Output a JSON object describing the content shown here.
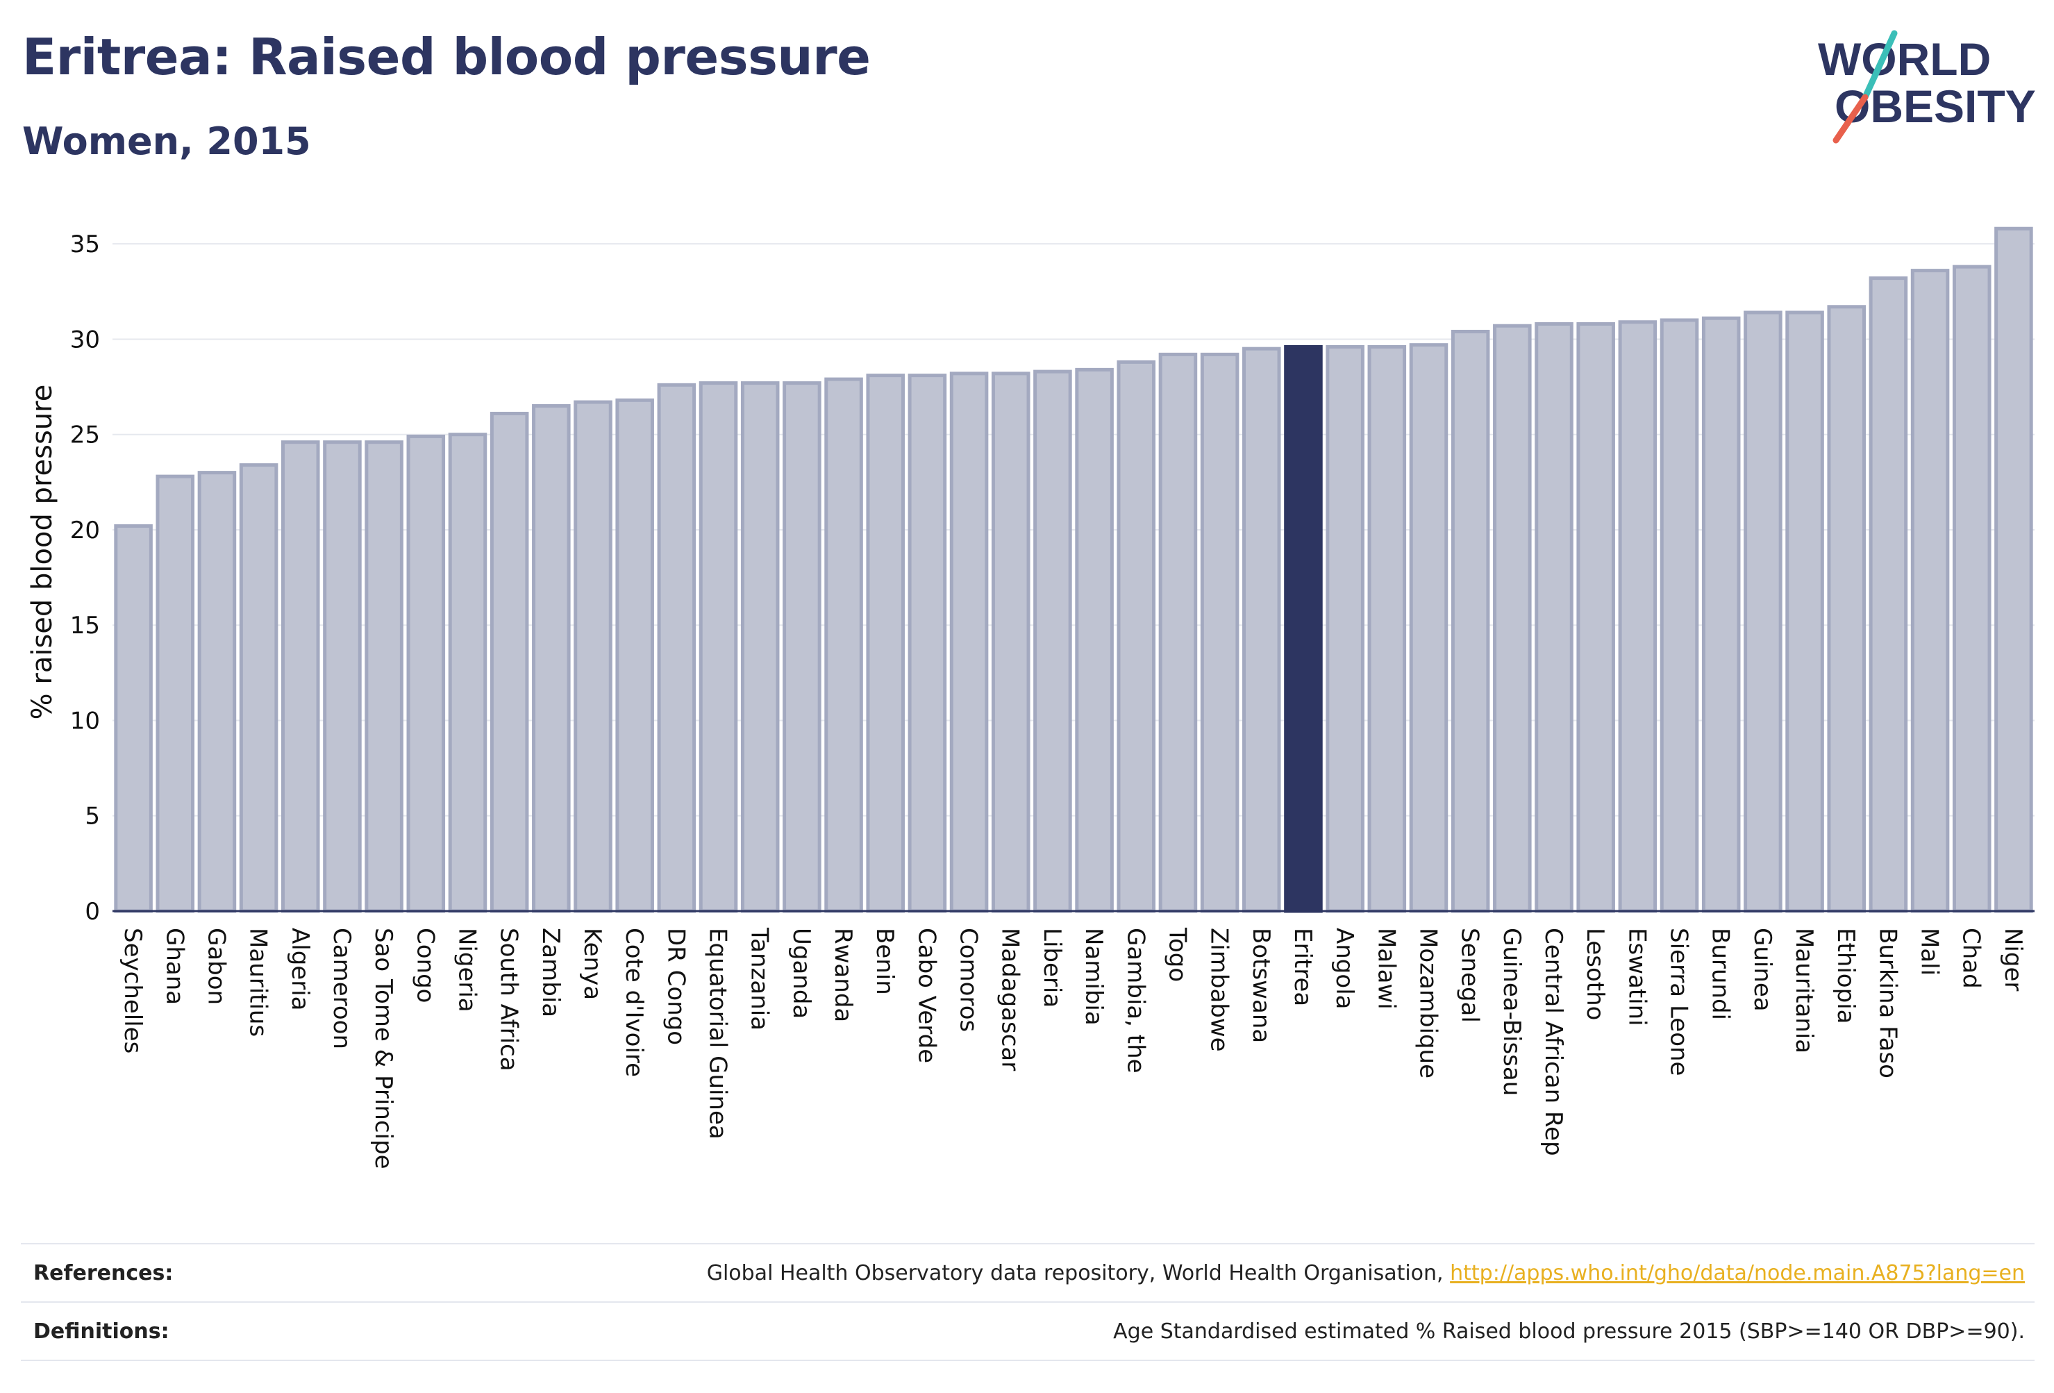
{
  "header": {
    "title": "Eritrea: Raised blood pressure",
    "subtitle": "Women, 2015"
  },
  "logo": {
    "line1": "WORLD",
    "line2": "OBESITY",
    "colors": {
      "text": "#2d3561",
      "slash_teal": "#3bbfb8",
      "slash_red": "#e8604c"
    }
  },
  "colors": {
    "bar_default": "#bfc3d2",
    "bar_border": "#a3a9c0",
    "bar_highlight": "#2d3561",
    "grid": "#e6e8ee",
    "axis": "#2d3561"
  },
  "chart_data": {
    "type": "bar",
    "title": "Eritrea: Raised blood pressure",
    "subtitle": "Women, 2015",
    "xlabel": "",
    "ylabel": "% raised blood pressure",
    "ylim": [
      0,
      36.5
    ],
    "yticks": [
      0,
      5,
      10,
      15,
      20,
      25,
      30,
      35
    ],
    "grid": true,
    "highlight": "Eritrea",
    "categories": [
      "Seychelles",
      "Ghana",
      "Gabon",
      "Mauritius",
      "Algeria",
      "Cameroon",
      "Sao Tome & Principe",
      "Congo",
      "Nigeria",
      "South Africa",
      "Zambia",
      "Kenya",
      "Cote d'Ivoire",
      "DR Congo",
      "Equatorial Guinea",
      "Tanzania",
      "Uganda",
      "Rwanda",
      "Benin",
      "Cabo Verde",
      "Comoros",
      "Madagascar",
      "Liberia",
      "Namibia",
      "Gambia, the",
      "Togo",
      "Zimbabwe",
      "Botswana",
      "Eritrea",
      "Angola",
      "Malawi",
      "Mozambique",
      "Senegal",
      "Guinea-Bissau",
      "Central African Rep",
      "Lesotho",
      "Eswatini",
      "Sierra Leone",
      "Burundi",
      "Guinea",
      "Mauritania",
      "Ethiopia",
      "Burkina Faso",
      "Mali",
      "Chad",
      "Niger"
    ],
    "values": [
      20.2,
      22.8,
      23.0,
      23.4,
      24.6,
      24.6,
      24.6,
      24.9,
      25.0,
      26.1,
      26.5,
      26.7,
      26.8,
      27.6,
      27.7,
      27.7,
      27.7,
      27.9,
      28.1,
      28.1,
      28.2,
      28.2,
      28.3,
      28.4,
      28.8,
      29.2,
      29.2,
      29.5,
      29.6,
      29.6,
      29.6,
      29.7,
      30.4,
      30.7,
      30.8,
      30.8,
      30.9,
      31.0,
      31.1,
      31.4,
      31.4,
      31.7,
      33.2,
      33.6,
      33.8,
      35.8
    ]
  },
  "references": {
    "label": "References:",
    "text": "Global Health Observatory data repository, World Health Organisation,",
    "link": "http://apps.who.int/gho/data/node.main.A875?lang=en"
  },
  "definitions": {
    "label": "Definitions:",
    "text": "Age Standardised estimated % Raised blood pressure 2015 (SBP>=140 OR DBP>=90)."
  }
}
